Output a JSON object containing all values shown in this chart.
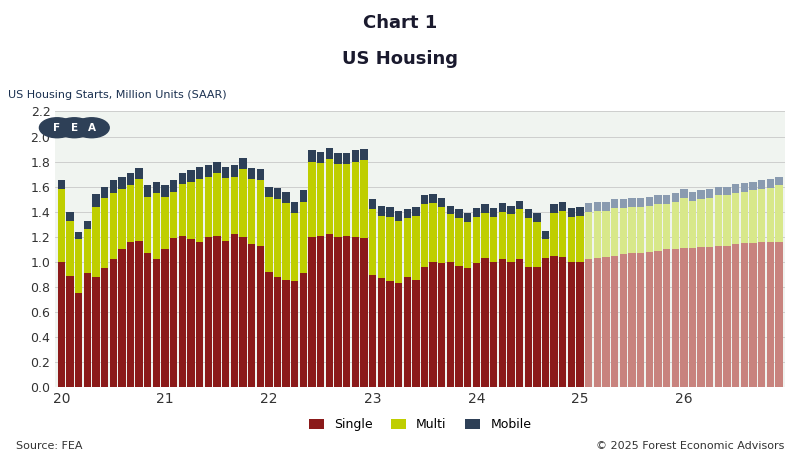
{
  "title1": "Chart 1",
  "title2": "US Housing",
  "ylabel": "US Housing Starts, Million Units (SAAR)",
  "source": "Source: FEA",
  "copyright": "© 2025 Forest Economic Advisors",
  "ylim": [
    0.0,
    2.2
  ],
  "yticks": [
    0.0,
    0.2,
    0.4,
    0.6,
    0.8,
    1.0,
    1.2,
    1.4,
    1.6,
    1.8,
    2.0,
    2.2
  ],
  "colors": {
    "single_actual": "#8B1A1A",
    "single_forecast": "#C8837E",
    "multi_actual": "#BFCE00",
    "multi_forecast": "#D8E88A",
    "mobile_actual": "#2E4057",
    "mobile_forecast": "#8A9BB0",
    "background": "#FFFFFF",
    "plot_bg": "#F0F4F0",
    "grid": "#C8C8C8"
  },
  "forecast_start_index": 61,
  "single": [
    1.0,
    0.89,
    0.75,
    0.91,
    0.88,
    0.95,
    1.02,
    1.1,
    1.16,
    1.17,
    1.07,
    1.02,
    1.1,
    1.19,
    1.21,
    1.18,
    1.16,
    1.2,
    1.21,
    1.17,
    1.22,
    1.2,
    1.14,
    1.13,
    0.92,
    0.88,
    0.86,
    0.85,
    0.91,
    1.2,
    1.21,
    1.22,
    1.2,
    1.21,
    1.2,
    1.19,
    0.9,
    0.87,
    0.85,
    0.83,
    0.88,
    0.86,
    0.96,
    1.0,
    0.99,
    1.0,
    0.97,
    0.95,
    0.99,
    1.03,
    1.0,
    1.02,
    1.0,
    1.02,
    0.96,
    0.96,
    1.03,
    1.05,
    1.04,
    1.0,
    1.0,
    1.02,
    1.03,
    1.04,
    1.05,
    1.06,
    1.07,
    1.07,
    1.08,
    1.09,
    1.1,
    1.1,
    1.11,
    1.11,
    1.12,
    1.12,
    1.13,
    1.13,
    1.14,
    1.15,
    1.15,
    1.16,
    1.16,
    1.16
  ],
  "multi": [
    0.58,
    0.44,
    0.43,
    0.35,
    0.56,
    0.56,
    0.53,
    0.48,
    0.45,
    0.49,
    0.45,
    0.53,
    0.42,
    0.37,
    0.41,
    0.46,
    0.5,
    0.48,
    0.5,
    0.5,
    0.46,
    0.54,
    0.52,
    0.52,
    0.6,
    0.62,
    0.61,
    0.54,
    0.57,
    0.6,
    0.58,
    0.6,
    0.58,
    0.57,
    0.6,
    0.62,
    0.52,
    0.5,
    0.51,
    0.5,
    0.47,
    0.51,
    0.5,
    0.47,
    0.45,
    0.38,
    0.38,
    0.37,
    0.37,
    0.36,
    0.36,
    0.38,
    0.38,
    0.4,
    0.39,
    0.36,
    0.15,
    0.34,
    0.37,
    0.36,
    0.37,
    0.38,
    0.38,
    0.37,
    0.38,
    0.37,
    0.37,
    0.37,
    0.37,
    0.37,
    0.36,
    0.38,
    0.4,
    0.38,
    0.38,
    0.39,
    0.4,
    0.4,
    0.41,
    0.41,
    0.42,
    0.42,
    0.43,
    0.45
  ],
  "mobile": [
    0.07,
    0.07,
    0.06,
    0.07,
    0.1,
    0.09,
    0.1,
    0.1,
    0.1,
    0.09,
    0.09,
    0.09,
    0.09,
    0.09,
    0.09,
    0.09,
    0.1,
    0.09,
    0.09,
    0.09,
    0.09,
    0.09,
    0.09,
    0.09,
    0.08,
    0.09,
    0.09,
    0.09,
    0.09,
    0.09,
    0.09,
    0.09,
    0.09,
    0.09,
    0.09,
    0.09,
    0.08,
    0.08,
    0.08,
    0.08,
    0.07,
    0.07,
    0.07,
    0.07,
    0.07,
    0.07,
    0.07,
    0.07,
    0.07,
    0.07,
    0.07,
    0.07,
    0.07,
    0.07,
    0.07,
    0.07,
    0.07,
    0.07,
    0.07,
    0.07,
    0.07,
    0.07,
    0.07,
    0.07,
    0.07,
    0.07,
    0.07,
    0.07,
    0.07,
    0.07,
    0.07,
    0.07,
    0.07,
    0.07,
    0.07,
    0.07,
    0.07,
    0.07,
    0.07,
    0.07,
    0.07,
    0.07,
    0.07,
    0.07
  ],
  "xtick_positions": [
    0,
    12,
    24,
    36,
    48,
    60,
    72
  ],
  "xtick_labels": [
    "20",
    "21",
    "22",
    "23",
    "24",
    "25",
    "26"
  ]
}
